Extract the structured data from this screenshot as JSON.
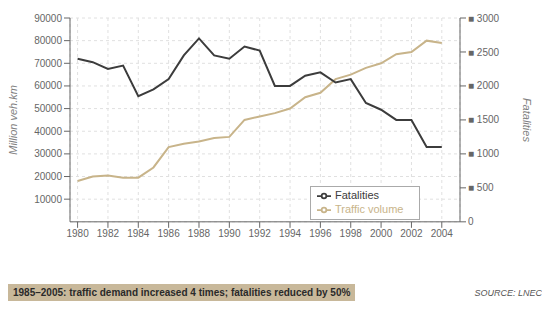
{
  "chart_data": {
    "type": "line",
    "subtitle": "1985–2005: traffic demand increased 4 times; fatalities reduced by 50%",
    "annotations": [
      "SOURCE: LNEC"
    ],
    "x": [
      1980,
      1981,
      1982,
      1983,
      1984,
      1985,
      1986,
      1987,
      1988,
      1989,
      1990,
      1991,
      1992,
      1993,
      1994,
      1995,
      1996,
      1997,
      1998,
      1999,
      2000,
      2001,
      2002,
      2003,
      2004
    ],
    "series": [
      {
        "name": "Traffic volume",
        "color": "#c8b48a",
        "values": [
          18000,
          20000,
          20500,
          19500,
          19500,
          24000,
          33000,
          34500,
          35500,
          37000,
          37500,
          45000,
          46500,
          48000,
          50000,
          55000,
          57000,
          63000,
          65000,
          68000,
          70000,
          74000,
          75000,
          80000,
          79000
        ]
      },
      {
        "name": "Fatalities",
        "color": "#3c3c3c",
        "axis": "y2",
        "values": [
          2400,
          2350,
          2250,
          2300,
          1850,
          1950,
          2100,
          2450,
          2700,
          2450,
          2400,
          2580,
          2520,
          2000,
          2000,
          2150,
          2200,
          2050,
          2100,
          1750,
          1650,
          1500,
          1500,
          1100,
          1100
        ]
      }
    ],
    "y_label": "Million veh.km",
    "y2_label": "Fatalities",
    "xlim": [
      1979.5,
      2005.2
    ],
    "xticks": [
      1980,
      1982,
      1984,
      1986,
      1988,
      1990,
      1992,
      1994,
      1996,
      1998,
      2000,
      2002,
      2004
    ],
    "ylim": [
      0,
      90000
    ],
    "yticks": [
      10000,
      20000,
      30000,
      40000,
      50000,
      60000,
      70000,
      80000,
      90000
    ],
    "y2lim": [
      0,
      3000
    ],
    "y2ticks": [
      0,
      {
        "value": 500,
        "label": "■ 500"
      },
      {
        "value": 1000,
        "label": "■ 1000"
      },
      {
        "value": 1500,
        "label": "■ 1500"
      },
      {
        "value": 2000,
        "label": "■ 2000"
      },
      {
        "value": 2500,
        "label": "■ 2500"
      },
      {
        "value": 3000,
        "label": "■ 3000"
      }
    ],
    "grid": true,
    "legend": "lower right"
  }
}
